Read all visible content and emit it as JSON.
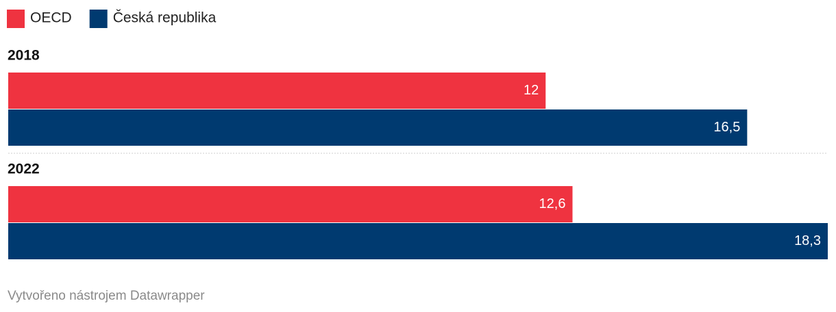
{
  "chart_data": {
    "type": "grouped-bar-horizontal",
    "categories": [
      "2018",
      "2022"
    ],
    "series": [
      {
        "name": "OECD",
        "color": "#ef3340",
        "values": [
          12,
          12.6
        ],
        "value_labels": [
          "12",
          "12,6"
        ]
      },
      {
        "name": "Česká republika",
        "color": "#003a70",
        "values": [
          16.5,
          18.3
        ],
        "value_labels": [
          "16,5",
          "18,3"
        ]
      }
    ],
    "credit": "Vytvořeno nástrojem Datawrapper"
  }
}
